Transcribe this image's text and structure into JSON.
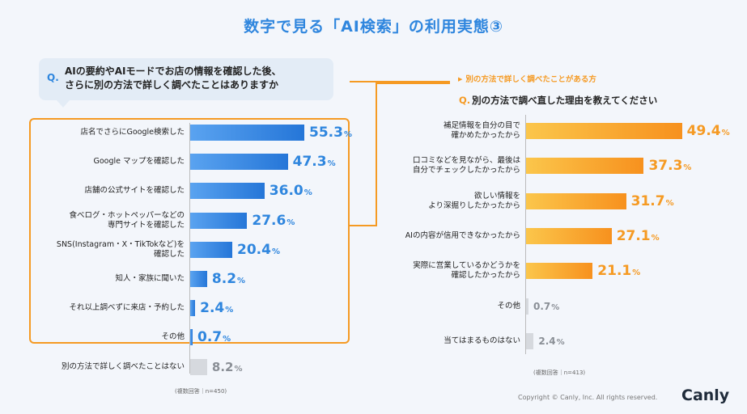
{
  "title": "数字で見る「AI検索」の利用実態③",
  "left_question": {
    "mark": "Q.",
    "line1": "AIの要約やAIモードでお店の情報を確認した後、",
    "line2": "さらに別の方法で詳しく調べたことはありますか"
  },
  "right_heading": "別の方法で詳しく調べたことがある方",
  "right_question": {
    "mark": "Q.",
    "text": "別の方法で調べ直した理由を教えてください"
  },
  "left_note": "(複数回答｜n=450)",
  "right_note": "(複数回答｜n=413)",
  "footer": {
    "copyright": "Copyright © Canly, Inc. All rights reserved.",
    "brand": "Canly"
  },
  "colors": {
    "accent_blue": "#2f86de",
    "accent_orange": "#f59a23",
    "grey": "#d6d9de"
  },
  "chart_data": [
    {
      "type": "bar",
      "orientation": "horizontal",
      "title": "AIの要約やAIモードでお店の情報を確認した後、さらに別の方法で詳しく調べたことはありますか",
      "unit": "%",
      "categories": [
        "店名でさらにGoogle検索した",
        "Google マップを確認した",
        "店舗の公式サイトを確認した",
        "食べログ・ホットペッパーなどの\n専門サイトを確認した",
        "SNS(Instagram・X・TikTokなど)を\n確認した",
        "知人・家族に聞いた",
        "それ以上調べずに来店・予約した",
        "その他",
        "別の方法で詳しく調べたことはない"
      ],
      "values": [
        55.3,
        47.3,
        36.0,
        27.6,
        20.4,
        8.2,
        2.4,
        0.7,
        8.2
      ],
      "value_labels": [
        "55.3",
        "47.3",
        "36.0",
        "27.6",
        "20.4",
        "8.2",
        "2.4",
        "0.7",
        "8.2"
      ],
      "highlighted": [
        true,
        true,
        true,
        true,
        true,
        true,
        true,
        true,
        false
      ],
      "note": "(複数回答｜n=450)"
    },
    {
      "type": "bar",
      "orientation": "horizontal",
      "title": "別の方法で調べ直した理由を教えてください",
      "unit": "%",
      "categories": [
        "補足情報を自分の目で\n確かめたかったから",
        "口コミなどを見ながら、最後は\n自分でチェックしたかったから",
        "欲しい情報を\nより深掘りしたかったから",
        "AIの内容が信用できなかったから",
        "実際に営業しているかどうかを\n確認したかったから",
        "その他",
        "当てはまるものはない"
      ],
      "values": [
        49.4,
        37.3,
        31.7,
        27.1,
        21.1,
        0.7,
        2.4
      ],
      "value_labels": [
        "49.4",
        "37.3",
        "31.7",
        "27.1",
        "21.1",
        "0.7",
        "2.4"
      ],
      "highlighted": [
        true,
        true,
        true,
        true,
        true,
        false,
        false
      ],
      "note": "(複数回答｜n=413)"
    }
  ]
}
